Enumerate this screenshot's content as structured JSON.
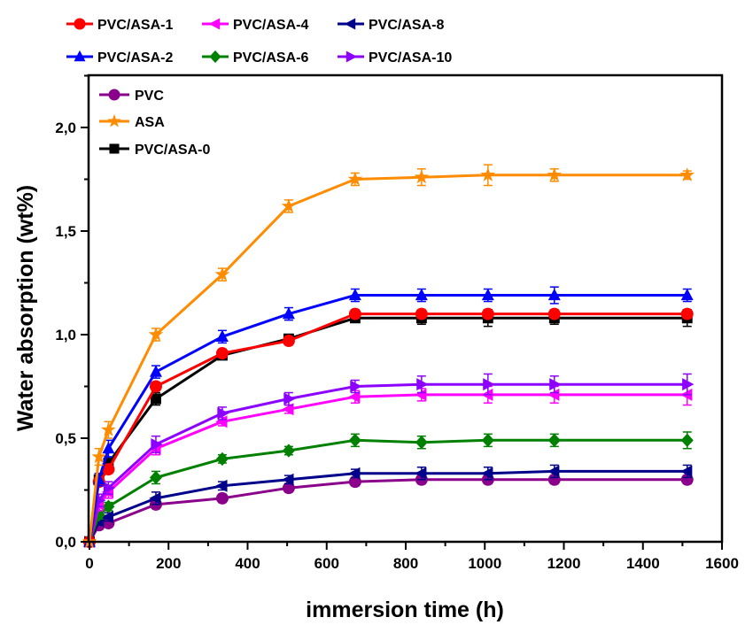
{
  "chart_data": {
    "type": "line",
    "title": "",
    "xlabel": "immersion time (h)",
    "ylabel": "Water absorption (wt%)",
    "xlim": [
      0,
      1600
    ],
    "ylim": [
      0,
      2.2
    ],
    "x_ticks": [
      0,
      200,
      400,
      600,
      800,
      1000,
      1200,
      1400,
      1600
    ],
    "x_tick_labels": [
      "0",
      "200",
      "400",
      "600",
      "800",
      "1000",
      "1200",
      "1400",
      "1600"
    ],
    "y_ticks": [
      0,
      0.5,
      1.0,
      1.5,
      2.0
    ],
    "y_tick_labels": [
      "0,0",
      "0,5",
      "1,0",
      "1,5",
      "2,0"
    ],
    "grid": false,
    "x": [
      0,
      24,
      48,
      168,
      336,
      504,
      672,
      840,
      1008,
      1176,
      1512
    ],
    "series": [
      {
        "name": "PVC",
        "color": "#8B008B",
        "marker": "circle",
        "values": [
          0,
          0.08,
          0.09,
          0.18,
          0.21,
          0.26,
          0.29,
          0.3,
          0.3,
          0.3,
          0.3
        ],
        "errors": [
          0,
          0.02,
          0.02,
          0.02,
          0.02,
          0.02,
          0.02,
          0.02,
          0.02,
          0.02,
          0.02
        ]
      },
      {
        "name": "ASA",
        "color": "#FF8C00",
        "marker": "star",
        "values": [
          0,
          0.41,
          0.54,
          1.0,
          1.29,
          1.62,
          1.75,
          1.76,
          1.77,
          1.77,
          1.77
        ],
        "errors": [
          0,
          0.04,
          0.04,
          0.03,
          0.03,
          0.03,
          0.03,
          0.04,
          0.05,
          0.03,
          0.02
        ]
      },
      {
        "name": "PVC/ASA-0",
        "color": "#000000",
        "marker": "square",
        "values": [
          0,
          0.3,
          0.38,
          0.69,
          0.9,
          0.98,
          1.08,
          1.08,
          1.08,
          1.08,
          1.08
        ],
        "errors": [
          0,
          0.03,
          0.03,
          0.03,
          0.02,
          0.02,
          0.02,
          0.03,
          0.04,
          0.03,
          0.04
        ]
      },
      {
        "name": "PVC/ASA-1",
        "color": "#FF0000",
        "marker": "circle",
        "values": [
          0,
          0.29,
          0.35,
          0.75,
          0.91,
          0.97,
          1.1,
          1.1,
          1.1,
          1.1,
          1.1
        ],
        "errors": [
          0,
          0.02,
          0.02,
          0.02,
          0.02,
          0.02,
          0.02,
          0.02,
          0.02,
          0.02,
          0.02
        ]
      },
      {
        "name": "PVC/ASA-2",
        "color": "#0000FF",
        "marker": "triangle-up",
        "values": [
          0,
          0.3,
          0.45,
          0.82,
          0.99,
          1.1,
          1.19,
          1.19,
          1.19,
          1.19,
          1.19
        ],
        "errors": [
          0,
          0.03,
          0.04,
          0.03,
          0.03,
          0.03,
          0.03,
          0.03,
          0.03,
          0.04,
          0.03
        ]
      },
      {
        "name": "PVC/ASA-4",
        "color": "#FF00FF",
        "marker": "triangle-left",
        "values": [
          0,
          0.18,
          0.24,
          0.45,
          0.58,
          0.64,
          0.7,
          0.71,
          0.71,
          0.71,
          0.71
        ],
        "errors": [
          0,
          0.03,
          0.03,
          0.03,
          0.02,
          0.02,
          0.03,
          0.03,
          0.04,
          0.04,
          0.05
        ]
      },
      {
        "name": "PVC/ASA-6",
        "color": "#008000",
        "marker": "diamond",
        "values": [
          0,
          0.13,
          0.17,
          0.31,
          0.4,
          0.44,
          0.49,
          0.48,
          0.49,
          0.49,
          0.49
        ],
        "errors": [
          0,
          0.02,
          0.02,
          0.03,
          0.02,
          0.02,
          0.03,
          0.03,
          0.03,
          0.03,
          0.04
        ]
      },
      {
        "name": "PVC/ASA-8",
        "color": "#00008B",
        "marker": "triangle-left",
        "values": [
          0,
          0.1,
          0.12,
          0.21,
          0.27,
          0.3,
          0.33,
          0.33,
          0.33,
          0.34,
          0.34
        ],
        "errors": [
          0,
          0.02,
          0.02,
          0.03,
          0.02,
          0.02,
          0.02,
          0.03,
          0.03,
          0.03,
          0.03
        ]
      },
      {
        "name": "PVC/ASA-10",
        "color": "#8B00FF",
        "marker": "triangle-right",
        "values": [
          0,
          0.2,
          0.26,
          0.47,
          0.62,
          0.69,
          0.75,
          0.76,
          0.76,
          0.76,
          0.76
        ],
        "errors": [
          0,
          0.03,
          0.03,
          0.04,
          0.03,
          0.03,
          0.03,
          0.04,
          0.05,
          0.04,
          0.05
        ]
      }
    ],
    "legend_outer": {
      "placement": "top, above plot, 2 rows × 3 columns",
      "entries": [
        "PVC/ASA-1",
        "PVC/ASA-4",
        "PVC/ASA-8",
        "PVC/ASA-2",
        "PVC/ASA-6",
        "PVC/ASA-10"
      ]
    },
    "legend_inner": {
      "placement": "top-left inside plot",
      "entries": [
        "PVC",
        "ASA",
        "PVC/ASA-0"
      ]
    }
  }
}
